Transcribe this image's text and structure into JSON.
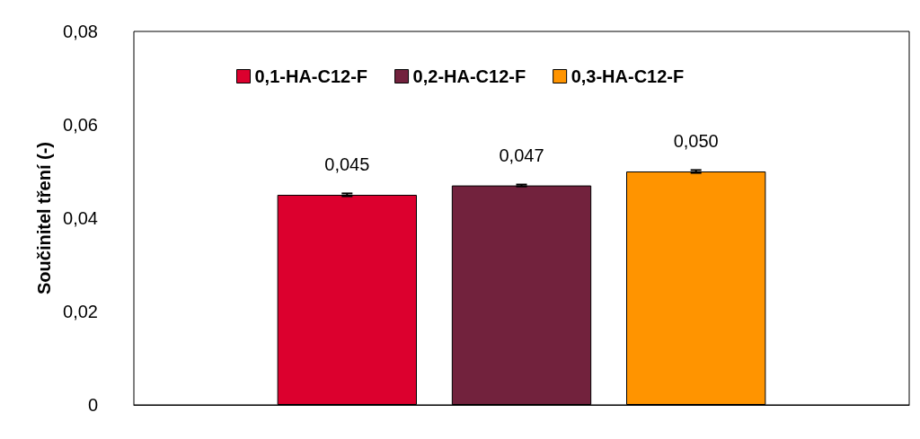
{
  "chart_data": {
    "type": "bar",
    "ylabel": "Součinitel tření (-)",
    "categories": [
      null
    ],
    "series": [
      {
        "name": "0,1-HA-C12-F",
        "color": "#dc002e",
        "values": [
          0.045
        ],
        "errors": [
          0.0003
        ],
        "value_labels": [
          "0,045"
        ]
      },
      {
        "name": "0,2-HA-C12-F",
        "color": "#72223d",
        "values": [
          0.047
        ],
        "errors": [
          0.0002
        ],
        "value_labels": [
          "0,047"
        ]
      },
      {
        "name": "0,3-HA-C12-F",
        "color": "#ff9400",
        "values": [
          0.05
        ],
        "errors": [
          0.0003
        ],
        "value_labels": [
          "0,050"
        ]
      }
    ],
    "ylim": [
      0,
      0.08
    ],
    "yticks": [
      {
        "value": 0,
        "label": "0"
      },
      {
        "value": 0.02,
        "label": "0,02"
      },
      {
        "value": 0.04,
        "label": "0,04"
      },
      {
        "value": 0.06,
        "label": "0,06"
      },
      {
        "value": 0.08,
        "label": "0,08"
      }
    ],
    "grid": false,
    "legend": "top"
  }
}
